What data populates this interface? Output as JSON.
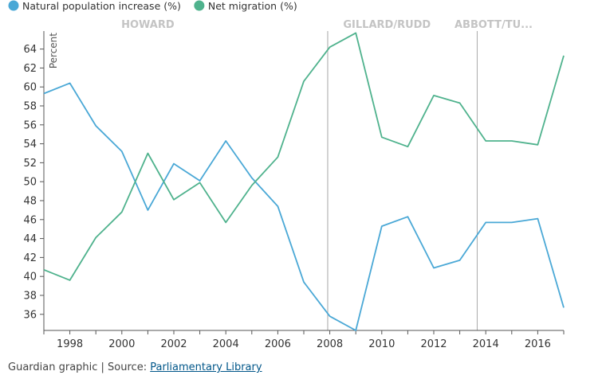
{
  "chart_data": {
    "type": "line",
    "title": "",
    "ylabel": "Percent",
    "xlabel": "",
    "x": [
      1997,
      1998,
      1999,
      2000,
      2001,
      2002,
      2003,
      2004,
      2005,
      2006,
      2007,
      2008,
      2009,
      2010,
      2011,
      2012,
      2013,
      2014,
      2015,
      2016,
      2017
    ],
    "xlim": [
      1997,
      2017
    ],
    "ylim": [
      34.3,
      65.9
    ],
    "x_ticks": [
      1998,
      2000,
      2002,
      2004,
      2006,
      2008,
      2010,
      2012,
      2014,
      2016
    ],
    "y_ticks": [
      36,
      38,
      40,
      42,
      44,
      46,
      48,
      50,
      52,
      54,
      56,
      58,
      60,
      62,
      64
    ],
    "grid": false,
    "legend_position": "top-left",
    "series": [
      {
        "name": "Natural population increase (%)",
        "color": "#4aa8d6",
        "values": [
          59.3,
          60.4,
          55.9,
          53.2,
          47.0,
          51.9,
          50.1,
          54.3,
          50.4,
          47.4,
          39.4,
          35.8,
          34.3,
          45.3,
          46.3,
          40.9,
          41.7,
          45.7,
          45.7,
          46.1,
          36.7
        ]
      },
      {
        "name": "Net migration (%)",
        "color": "#4fb28d",
        "values": [
          40.7,
          39.6,
          44.1,
          46.8,
          53.0,
          48.1,
          49.9,
          45.7,
          49.6,
          52.6,
          60.6,
          64.2,
          65.7,
          54.7,
          53.7,
          59.1,
          58.3,
          54.3,
          54.3,
          53.9,
          63.3
        ]
      }
    ],
    "eras": [
      {
        "label": "HOWARD",
        "x_center": 2001,
        "x_start": 1997
      },
      {
        "label": "GILLARD/RUDD",
        "x_center": 2010.2,
        "x_start": 2007.92
      },
      {
        "label": "ABBOTT/TU...",
        "x_center": 2014.3,
        "x_start": 2013.67
      }
    ]
  },
  "footer": {
    "prefix": "Guardian graphic | Source: ",
    "link_text": "Parliamentary Library"
  }
}
